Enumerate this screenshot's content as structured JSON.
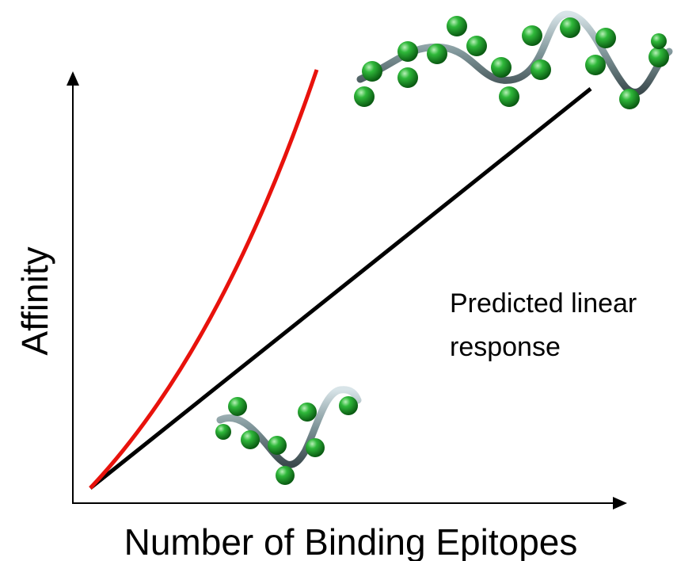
{
  "axes": {
    "x_label": "Number of Binding Epitopes",
    "y_label": "Affinity"
  },
  "annotation": {
    "lines": [
      "Predicted linear",
      "response"
    ]
  }
}
